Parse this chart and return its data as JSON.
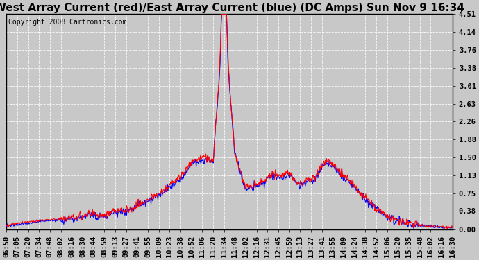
{
  "title": "West Array Current (red)/East Array Current (blue) (DC Amps) Sun Nov 9 16:34",
  "copyright": "Copyright 2008 Cartronics.com",
  "background_color": "#c8c8c8",
  "plot_bg_color": "#c8c8c8",
  "grid_color": "#ffffff",
  "yticks": [
    0.0,
    0.38,
    0.75,
    1.13,
    1.5,
    1.88,
    2.26,
    2.63,
    3.01,
    3.38,
    3.76,
    4.14,
    4.51
  ],
  "ymin": 0.0,
  "ymax": 4.51,
  "xtick_labels": [
    "06:50",
    "07:05",
    "07:20",
    "07:34",
    "07:48",
    "08:02",
    "08:16",
    "08:30",
    "08:44",
    "08:59",
    "09:13",
    "09:27",
    "09:41",
    "09:55",
    "10:09",
    "10:23",
    "10:38",
    "10:52",
    "11:06",
    "11:20",
    "11:34",
    "11:48",
    "12:02",
    "12:16",
    "12:31",
    "12:45",
    "12:59",
    "13:13",
    "13:27",
    "13:41",
    "13:55",
    "14:09",
    "14:24",
    "14:38",
    "14:52",
    "15:06",
    "15:20",
    "15:35",
    "15:48",
    "16:02",
    "16:16",
    "16:30"
  ],
  "red_line_color": "#ff0000",
  "blue_line_color": "#0000ff",
  "title_fontsize": 11,
  "tick_fontsize": 7.5,
  "copyright_fontsize": 7,
  "red_curve": [
    0.08,
    0.12,
    0.15,
    0.18,
    0.2,
    0.22,
    0.25,
    0.28,
    0.3,
    0.32,
    0.35,
    0.4,
    0.5,
    0.6,
    0.75,
    0.9,
    1.1,
    1.4,
    1.5,
    1.45,
    4.51,
    1.6,
    0.85,
    0.95,
    1.05,
    1.2,
    1.1,
    1.0,
    1.0,
    1.3,
    1.3,
    1.15,
    0.9,
    0.65,
    0.45,
    0.28,
    0.18,
    0.12,
    0.08,
    0.06,
    0.05,
    0.04
  ],
  "blue_curve": [
    0.07,
    0.1,
    0.13,
    0.16,
    0.18,
    0.2,
    0.23,
    0.26,
    0.28,
    0.3,
    0.33,
    0.38,
    0.48,
    0.58,
    0.72,
    0.87,
    1.05,
    1.35,
    1.46,
    1.42,
    4.45,
    1.55,
    0.82,
    0.92,
    1.02,
    1.17,
    1.07,
    0.97,
    0.97,
    1.25,
    1.25,
    1.1,
    0.87,
    0.62,
    0.43,
    0.27,
    0.17,
    0.11,
    0.07,
    0.05,
    0.04,
    0.03
  ]
}
